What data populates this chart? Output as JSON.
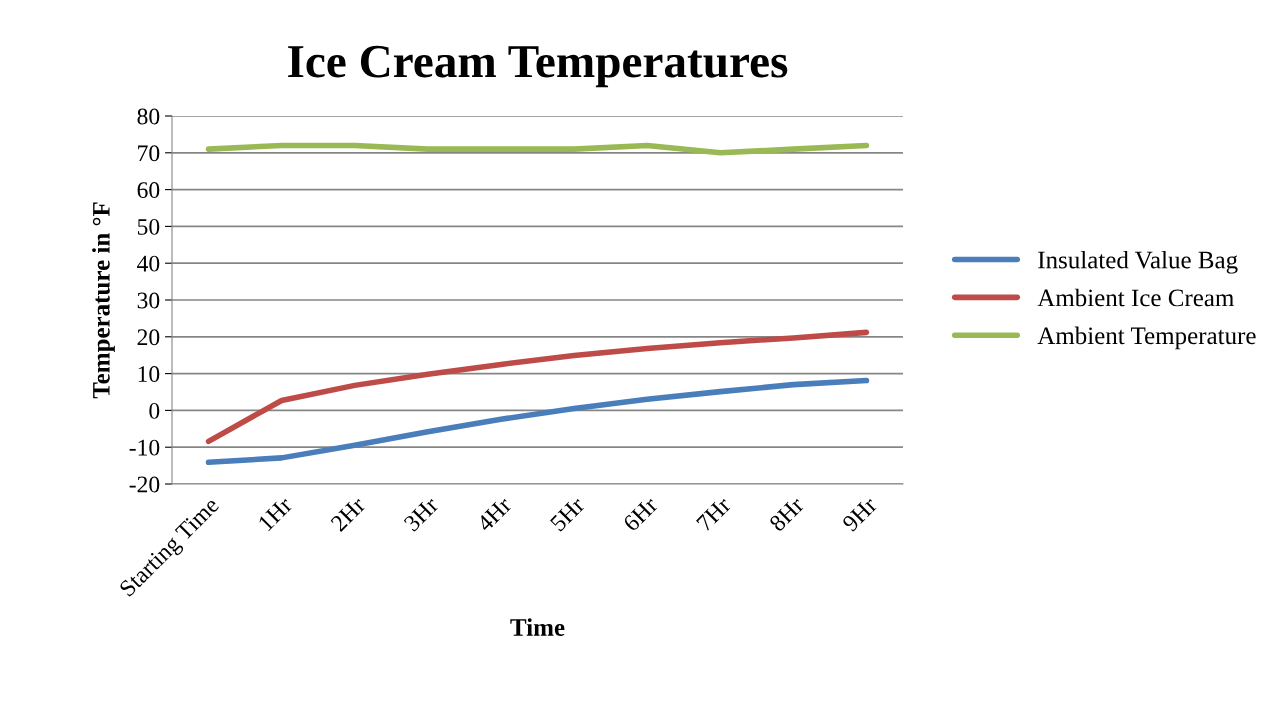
{
  "chart_data": {
    "type": "line",
    "title": "Ice Cream Temperatures",
    "xlabel": "Time",
    "ylabel": "Temperature in °F",
    "categories": [
      "Starting Time",
      "1Hr",
      "2Hr",
      "3Hr",
      "4Hr",
      "5Hr",
      "6Hr",
      "7Hr",
      "8Hr",
      "9Hr"
    ],
    "series": [
      {
        "name": "Insulated Value Bag",
        "color": "#4a7ebb",
        "values": [
          -14.1,
          -12.9,
          -9.5,
          -5.8,
          -2.4,
          0.5,
          3,
          5.1,
          7,
          8.1
        ]
      },
      {
        "name": "Ambient Ice Cream",
        "color": "#be4b48",
        "values": [
          -8.4,
          2.7,
          6.8,
          9.8,
          12.5,
          14.9,
          16.8,
          18.4,
          19.7,
          21.2
        ]
      },
      {
        "name": "Ambient Temperature",
        "color": "#98b954",
        "values": [
          71,
          72,
          72,
          71,
          71,
          71,
          72,
          70,
          71,
          72
        ]
      }
    ],
    "ylim": [
      -20,
      80
    ],
    "yticks": [
      -20,
      -10,
      0,
      10,
      20,
      30,
      40,
      50,
      60,
      70,
      80
    ],
    "grid": "y",
    "legend": "right",
    "marker": "none",
    "line_style": "solid"
  }
}
